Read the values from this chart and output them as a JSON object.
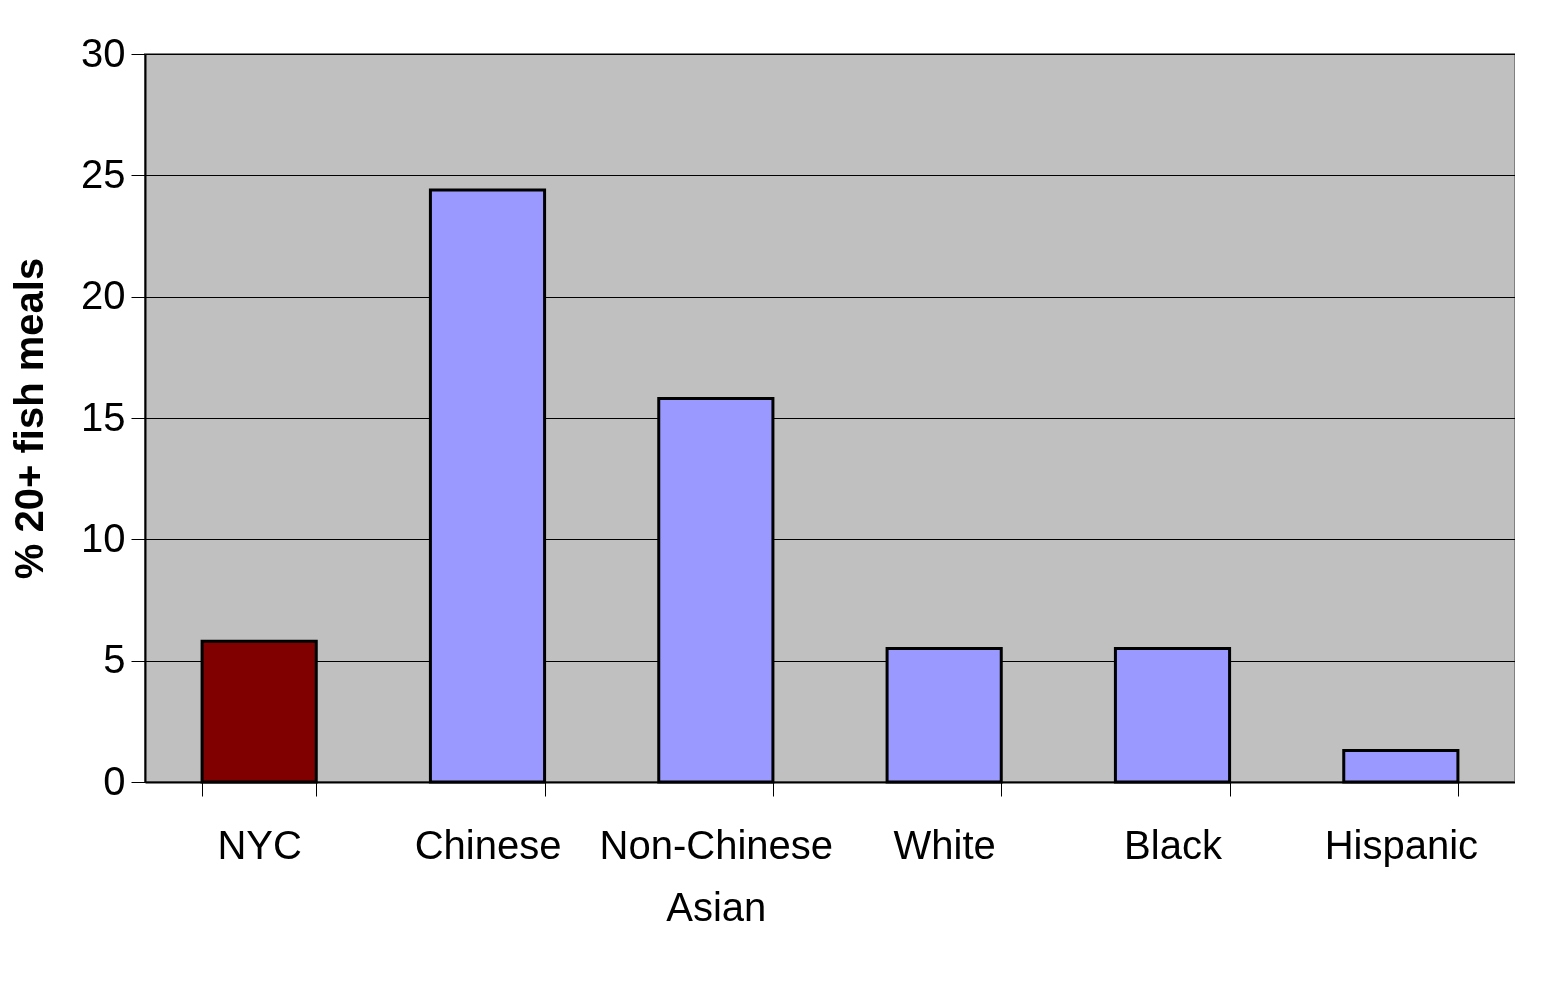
{
  "chart_data": {
    "type": "bar",
    "ylabel": "% 20+ fish meals",
    "categories": [
      "NYC",
      "Chinese",
      "Non-Chinese Asian",
      "White",
      "Black",
      "Hispanic"
    ],
    "values": [
      5.8,
      24.4,
      15.8,
      5.5,
      5.5,
      1.3
    ],
    "colors": [
      "#800000",
      "#9999ff",
      "#9999ff",
      "#9999ff",
      "#9999ff",
      "#9999ff"
    ],
    "ylim": [
      0,
      30
    ],
    "yticks": [
      0,
      5,
      10,
      15,
      20,
      25,
      30
    ],
    "grid": "y"
  }
}
